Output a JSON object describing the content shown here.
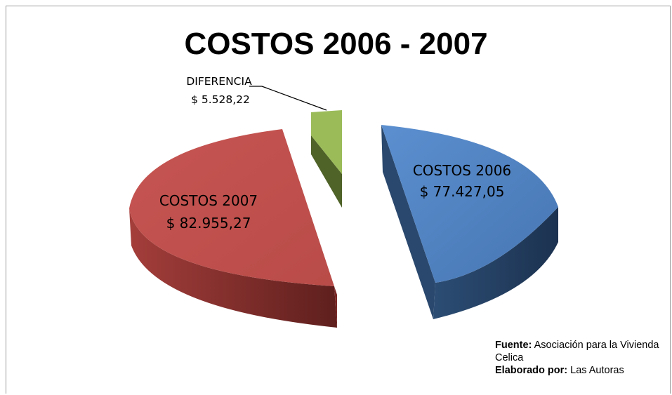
{
  "chart_data": {
    "type": "pie",
    "title": "COSTOS 2006 - 2007",
    "slices": [
      {
        "label": "COSTOS 2006",
        "value_text": "$ 77.427,05",
        "value": 77427.05,
        "color": "#4f81bd"
      },
      {
        "label": "COSTOS 2007",
        "value_text": "$ 82.955,27",
        "value": 82955.27,
        "color": "#c0504d"
      },
      {
        "label": "DIFERENCIA",
        "value_text": "$ 5.528,22",
        "value": 5528.22,
        "color": "#9bbb59"
      }
    ]
  },
  "source": {
    "fuente_label": "Fuente:",
    "fuente_text": "Asociación para  la Vivienda Celica",
    "elaborado_label": "Elaborado por:",
    "elaborado_text": "Las Autoras"
  }
}
